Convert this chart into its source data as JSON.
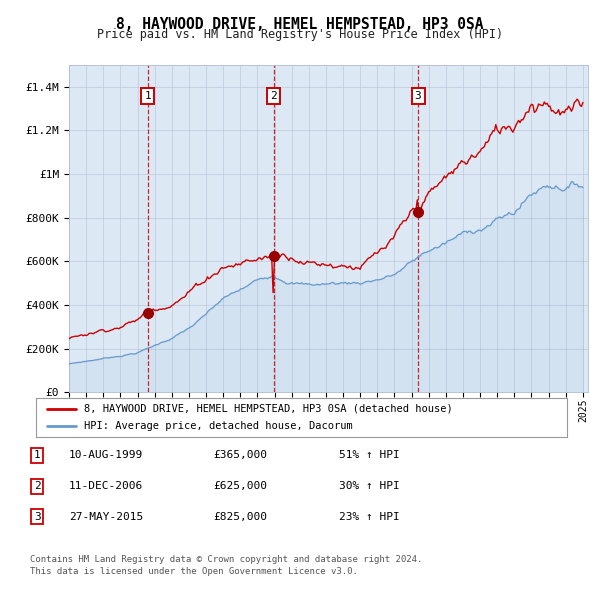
{
  "title": "8, HAYWOOD DRIVE, HEMEL HEMPSTEAD, HP3 0SA",
  "subtitle": "Price paid vs. HM Land Registry's House Price Index (HPI)",
  "background_color": "#dce9f5",
  "plot_bg_color": "#dce9f5",
  "outer_bg_color": "#ffffff",
  "red_line_color": "#cc0000",
  "blue_line_color": "#6699cc",
  "sale_marker_color": "#990000",
  "vline_color": "#cc0000",
  "grid_color": "#b0bcd4",
  "ylim": [
    0,
    1500000
  ],
  "yticks": [
    0,
    200000,
    400000,
    600000,
    800000,
    1000000,
    1200000,
    1400000
  ],
  "ytick_labels": [
    "£0",
    "£200K",
    "£400K",
    "£600K",
    "£800K",
    "£1M",
    "£1.2M",
    "£1.4M"
  ],
  "xstart_year": 1995,
  "xend_year": 2025,
  "sale1_year": 1999.6,
  "sale1_price": 365000,
  "sale1_label": "1",
  "sale2_year": 2006.95,
  "sale2_price": 625000,
  "sale2_label": "2",
  "sale3_year": 2015.38,
  "sale3_price": 825000,
  "sale3_label": "3",
  "legend_line1": "8, HAYWOOD DRIVE, HEMEL HEMPSTEAD, HP3 0SA (detached house)",
  "legend_line2": "HPI: Average price, detached house, Dacorum",
  "table_rows": [
    [
      "1",
      "10-AUG-1999",
      "£365,000",
      "51% ↑ HPI"
    ],
    [
      "2",
      "11-DEC-2006",
      "£625,000",
      "30% ↑ HPI"
    ],
    [
      "3",
      "27-MAY-2015",
      "£825,000",
      "23% ↑ HPI"
    ]
  ],
  "footnote1": "Contains HM Land Registry data © Crown copyright and database right 2024.",
  "footnote2": "This data is licensed under the Open Government Licence v3.0."
}
